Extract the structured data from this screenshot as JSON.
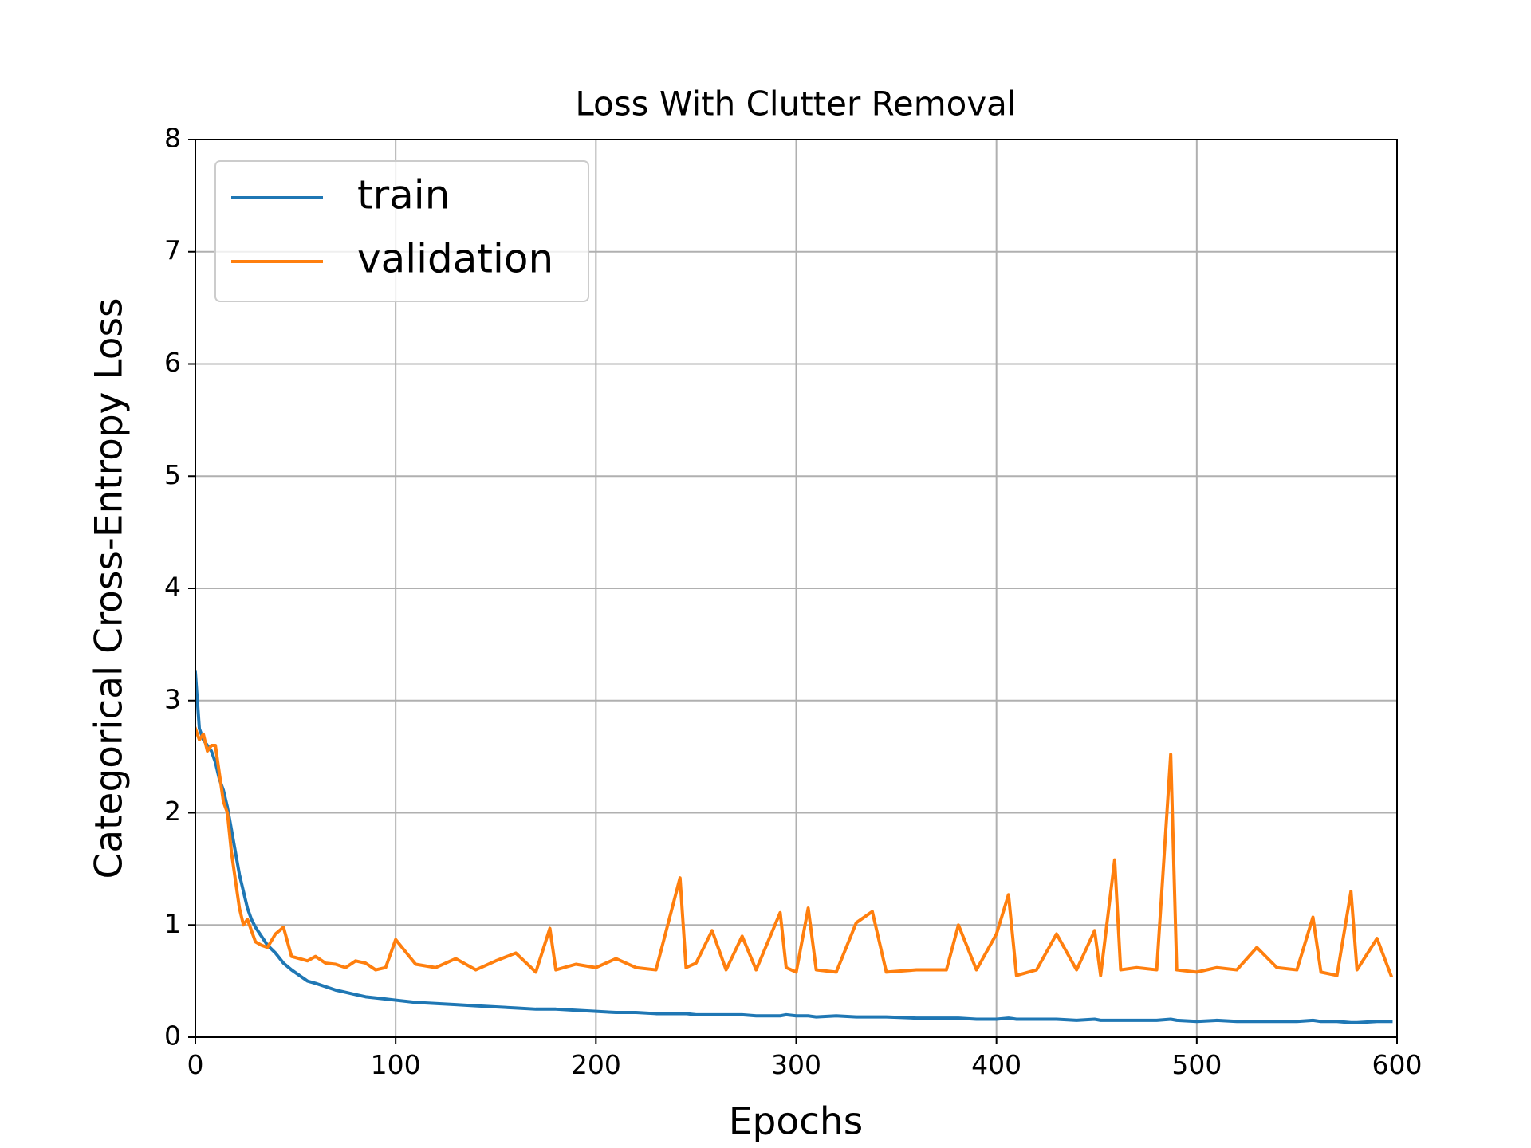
{
  "chart_data": {
    "type": "line",
    "title": "Loss With Clutter Removal",
    "x_label": "Epochs",
    "y_label": "Categorical Cross-Entropy Loss",
    "x": [
      0,
      2,
      4,
      6,
      8,
      10,
      12,
      14,
      16,
      18,
      20,
      22,
      24,
      26,
      28,
      30,
      33,
      36,
      40,
      44,
      48,
      52,
      56,
      60,
      65,
      70,
      75,
      80,
      85,
      90,
      95,
      100,
      110,
      120,
      130,
      140,
      150,
      160,
      170,
      177,
      180,
      190,
      200,
      210,
      220,
      230,
      242,
      245,
      250,
      258,
      265,
      273,
      280,
      292,
      295,
      300,
      306,
      310,
      320,
      330,
      338,
      345,
      360,
      375,
      381,
      390,
      400,
      406,
      410,
      420,
      430,
      440,
      449,
      452,
      459,
      462,
      470,
      480,
      487,
      490,
      500,
      510,
      520,
      530,
      540,
      550,
      558,
      562,
      570,
      577,
      580,
      590,
      597
    ],
    "series": [
      {
        "name": "train",
        "color": "#1f77b4",
        "values": [
          3.25,
          2.75,
          2.65,
          2.6,
          2.55,
          2.45,
          2.3,
          2.2,
          2.05,
          1.85,
          1.65,
          1.45,
          1.3,
          1.15,
          1.05,
          0.98,
          0.9,
          0.82,
          0.75,
          0.66,
          0.6,
          0.55,
          0.5,
          0.48,
          0.45,
          0.42,
          0.4,
          0.38,
          0.36,
          0.35,
          0.34,
          0.33,
          0.31,
          0.3,
          0.29,
          0.28,
          0.27,
          0.26,
          0.25,
          0.25,
          0.25,
          0.24,
          0.23,
          0.22,
          0.22,
          0.21,
          0.21,
          0.21,
          0.2,
          0.2,
          0.2,
          0.2,
          0.19,
          0.19,
          0.2,
          0.19,
          0.19,
          0.18,
          0.19,
          0.18,
          0.18,
          0.18,
          0.17,
          0.17,
          0.17,
          0.16,
          0.16,
          0.17,
          0.16,
          0.16,
          0.16,
          0.15,
          0.16,
          0.15,
          0.15,
          0.15,
          0.15,
          0.15,
          0.16,
          0.15,
          0.14,
          0.15,
          0.14,
          0.14,
          0.14,
          0.14,
          0.15,
          0.14,
          0.14,
          0.13,
          0.13,
          0.14,
          0.14
        ]
      },
      {
        "name": "validation",
        "color": "#ff7f0e",
        "values": [
          2.75,
          2.65,
          2.7,
          2.55,
          2.6,
          2.6,
          2.35,
          2.1,
          2.0,
          1.65,
          1.4,
          1.15,
          1.0,
          1.05,
          0.95,
          0.85,
          0.82,
          0.8,
          0.92,
          0.98,
          0.72,
          0.7,
          0.68,
          0.72,
          0.66,
          0.65,
          0.62,
          0.68,
          0.66,
          0.6,
          0.62,
          0.87,
          0.65,
          0.62,
          0.7,
          0.6,
          0.68,
          0.75,
          0.58,
          0.97,
          0.6,
          0.65,
          0.62,
          0.7,
          0.62,
          0.6,
          1.42,
          0.62,
          0.66,
          0.95,
          0.6,
          0.9,
          0.6,
          1.11,
          0.62,
          0.58,
          1.15,
          0.6,
          0.58,
          1.02,
          1.12,
          0.58,
          0.6,
          0.6,
          1.0,
          0.6,
          0.92,
          1.27,
          0.55,
          0.6,
          0.92,
          0.6,
          0.95,
          0.55,
          1.58,
          0.6,
          0.62,
          0.6,
          2.52,
          0.6,
          0.58,
          0.62,
          0.6,
          0.8,
          0.62,
          0.6,
          1.07,
          0.58,
          0.55,
          1.3,
          0.6,
          0.88,
          0.55
        ]
      }
    ],
    "xlim": [
      0,
      600
    ],
    "ylim": [
      0,
      8
    ],
    "xticks": [
      0,
      100,
      200,
      300,
      400,
      500,
      600
    ],
    "yticks": [
      0,
      1,
      2,
      3,
      4,
      5,
      6,
      7,
      8
    ],
    "grid": true,
    "legend": "upper left"
  }
}
